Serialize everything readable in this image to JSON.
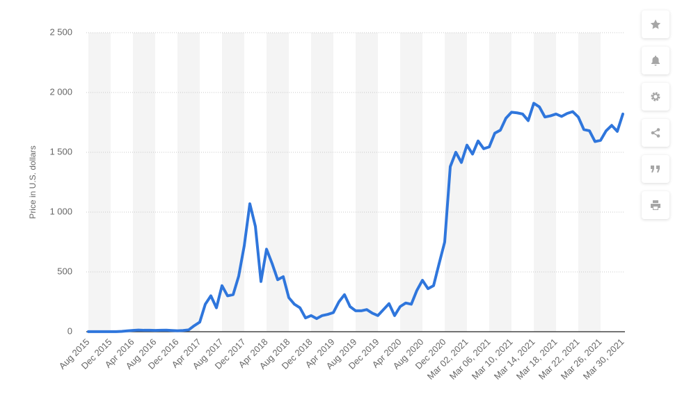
{
  "chart_data": {
    "type": "line",
    "y_label": "Price in U.S. dollars",
    "color": "#2f76dc",
    "ylim": [
      0,
      2500
    ],
    "yticks": [
      0,
      500,
      {
        "value": 1000,
        "label": "1 000"
      },
      {
        "value": 1500,
        "label": "1 500"
      },
      {
        "value": 2000,
        "label": "2 000"
      },
      {
        "value": 2500,
        "label": "2 500"
      }
    ],
    "grid": true,
    "categories": [
      "Aug 2015",
      null,
      null,
      null,
      "Dec 2015",
      null,
      null,
      null,
      "Apr 2016",
      null,
      null,
      null,
      "Aug 2016",
      null,
      null,
      null,
      "Dec 2016",
      null,
      null,
      null,
      "Apr 2017",
      null,
      null,
      null,
      "Aug 2017",
      null,
      null,
      null,
      "Dec 2017",
      null,
      null,
      null,
      "Apr 2018",
      null,
      null,
      null,
      "Aug 2018",
      null,
      null,
      null,
      "Dec 2018",
      null,
      null,
      null,
      "Apr 2019",
      null,
      null,
      null,
      "Aug 2019",
      null,
      null,
      null,
      "Dec 2019",
      null,
      null,
      null,
      "Apr 2020",
      null,
      null,
      null,
      "Aug 2020",
      null,
      null,
      null,
      "Dec 2020",
      null,
      null,
      null,
      "Mar 02, 2021",
      null,
      null,
      null,
      "Mar 06, 2021",
      null,
      null,
      null,
      "Mar 10, 2021",
      null,
      null,
      null,
      "Mar 14, 2021",
      null,
      null,
      null,
      "Mar 18, 2021",
      null,
      null,
      null,
      "Mar 22, 2021",
      null,
      null,
      null,
      "Mar 26, 2021",
      null,
      null,
      null,
      "Mar 30, 2021"
    ],
    "values": [
      1,
      1,
      1,
      1,
      1,
      1,
      3,
      7,
      11,
      14,
      12,
      12,
      11,
      12,
      13,
      10,
      8,
      10,
      15,
      50,
      80,
      230,
      300,
      200,
      385,
      300,
      310,
      465,
      720,
      1070,
      880,
      420,
      690,
      570,
      435,
      460,
      285,
      230,
      200,
      115,
      135,
      110,
      135,
      145,
      160,
      250,
      310,
      210,
      175,
      175,
      185,
      155,
      135,
      185,
      235,
      135,
      210,
      240,
      230,
      345,
      430,
      360,
      385,
      570,
      750,
      1380,
      1500,
      1415,
      1560,
      1485,
      1595,
      1530,
      1545,
      1660,
      1685,
      1785,
      1835,
      1830,
      1820,
      1765,
      1910,
      1880,
      1795,
      1805,
      1820,
      1800,
      1825,
      1840,
      1795,
      1690,
      1680,
      1590,
      1600,
      1680,
      1725,
      1675,
      1820
    ]
  }
}
